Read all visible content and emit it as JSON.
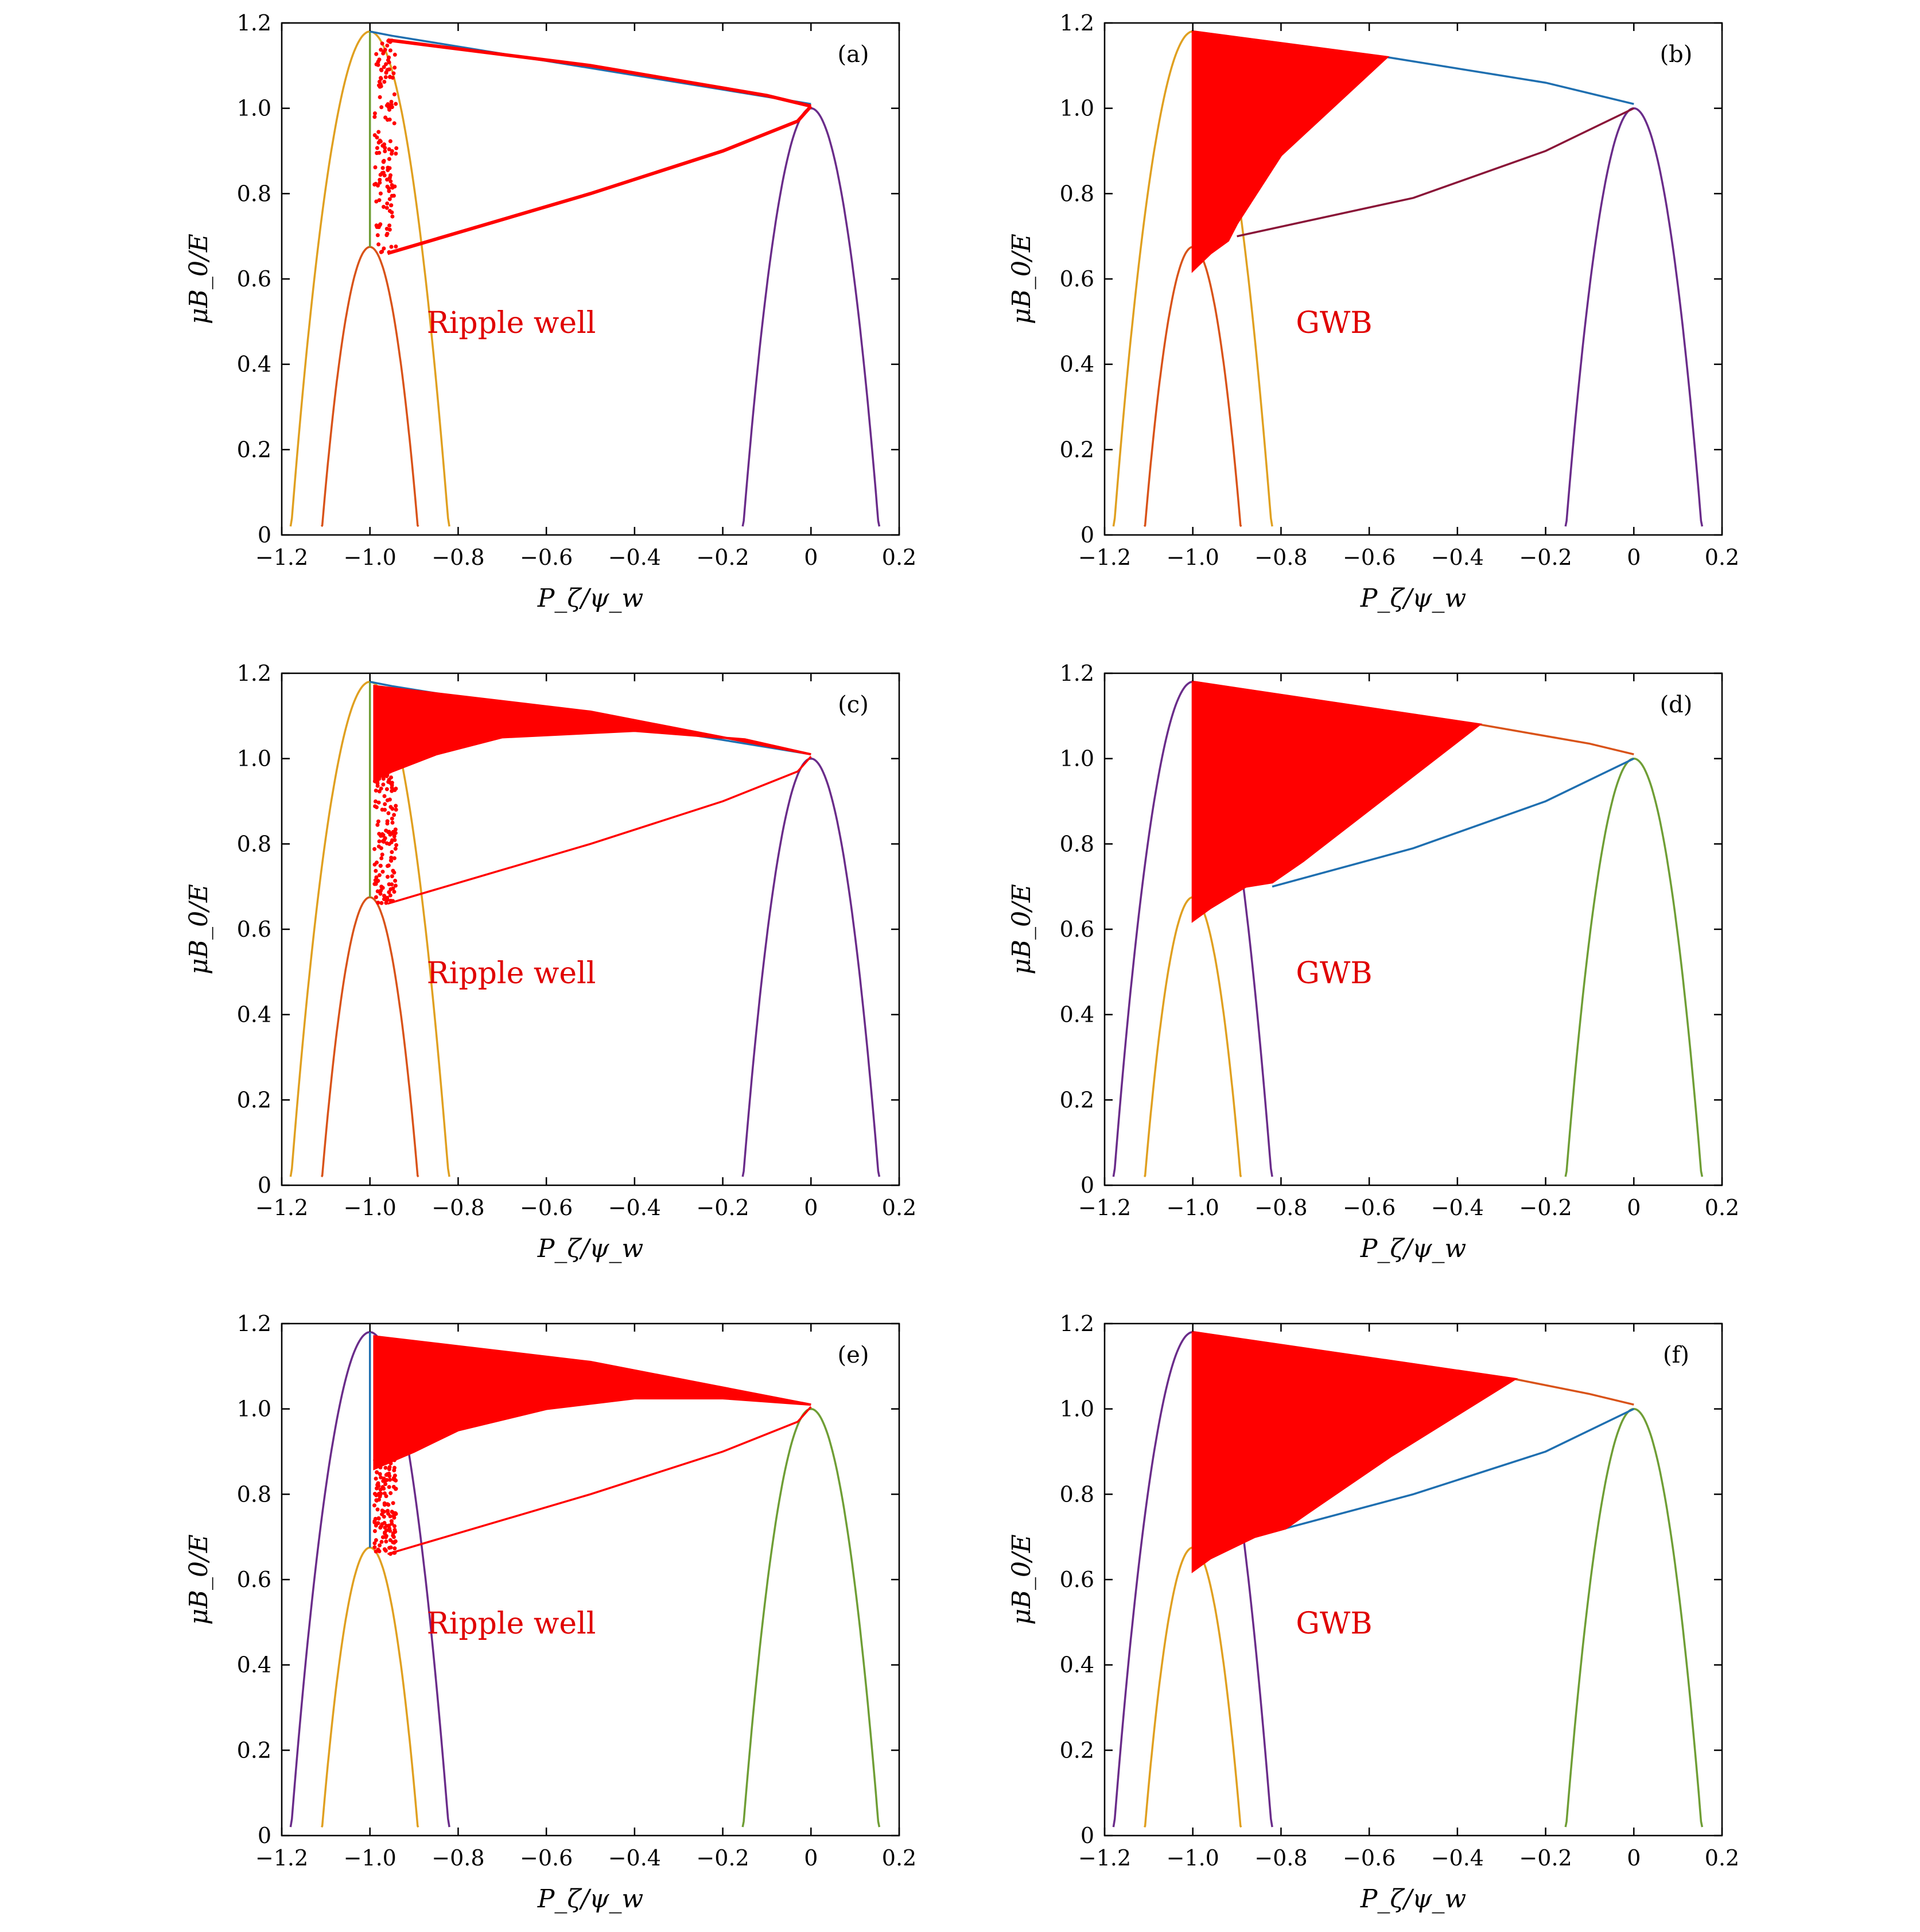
{
  "figure": {
    "colors": {
      "red": "#ff0000",
      "blue": "#1f6fb0",
      "orange": "#d95319",
      "gold": "#e0a020",
      "purple": "#6a2c8a",
      "green": "#6f9e35",
      "darkred": "#8a1538",
      "annotation": "#e00000"
    }
  },
  "chart_data": [
    {
      "id": "a",
      "type": "scatter",
      "panel_label": "(a)",
      "annotation": "Ripple well",
      "xlabel": "P_ζ/ψ_w",
      "ylabel": "μB_0/E",
      "xlim": [
        -1.2,
        0.2
      ],
      "ylim": [
        0,
        1.2
      ],
      "xticks": [
        -1.2,
        -1.0,
        -0.8,
        -0.6,
        -0.4,
        -0.2,
        0,
        0.2
      ],
      "xtick_labels": [
        "−1.2",
        "−1.0",
        "−0.8",
        "−0.6",
        "−0.4",
        "−0.2",
        "0",
        "0.2"
      ],
      "yticks": [
        0,
        0.2,
        0.4,
        0.6,
        0.8,
        1.0,
        1.2
      ],
      "ytick_labels": [
        "0",
        "0.2",
        "0.4",
        "0.6",
        "0.8",
        "1.0",
        "1.2"
      ],
      "series": [
        {
          "color": "gold",
          "shape": "parabola",
          "apex": [
            -1.0,
            1.18
          ],
          "roots": [
            -1.18,
            -0.82
          ]
        },
        {
          "color": "orange",
          "shape": "parabola",
          "apex": [
            -1.0,
            0.675
          ],
          "roots": [
            -1.11,
            -0.89
          ]
        },
        {
          "color": "purple",
          "shape": "parabola",
          "apex": [
            0.0,
            1.0
          ],
          "roots": [
            -0.155,
            0.155
          ]
        },
        {
          "color": "green",
          "shape": "line",
          "points": [
            [
              -1.0,
              0.675
            ],
            [
              -1.0,
              1.18
            ]
          ]
        },
        {
          "color": "blue",
          "shape": "line",
          "points": [
            [
              -1.0,
              1.18
            ],
            [
              -0.95,
              1.17
            ],
            [
              0.0,
              1.01
            ]
          ]
        },
        {
          "color": "red",
          "shape": "loop",
          "upper": [
            [
              -0.96,
              1.16
            ],
            [
              -0.5,
              1.1
            ],
            [
              -0.1,
              1.03
            ],
            [
              0.0,
              1.005
            ]
          ],
          "lower": [
            [
              -0.96,
              0.66
            ],
            [
              -0.5,
              0.8
            ],
            [
              -0.2,
              0.9
            ],
            [
              -0.03,
              0.97
            ],
            [
              0.0,
              1.005
            ]
          ]
        },
        {
          "color": "red",
          "shape": "scatter_band",
          "x_range": [
            -0.99,
            -0.94
          ],
          "y_range": [
            0.66,
            1.16
          ]
        }
      ]
    },
    {
      "id": "b",
      "type": "scatter",
      "panel_label": "(b)",
      "annotation": "GWB",
      "xlabel": "P_ζ/ψ_w",
      "ylabel": "μB_0/E",
      "xlim": [
        -1.2,
        0.2
      ],
      "ylim": [
        0,
        1.2
      ],
      "xticks": [
        -1.2,
        -1.0,
        -0.8,
        -0.6,
        -0.4,
        -0.2,
        0,
        0.2
      ],
      "xtick_labels": [
        "−1.2",
        "−1.0",
        "−0.8",
        "−0.6",
        "−0.4",
        "−0.2",
        "0",
        "0.2"
      ],
      "yticks": [
        0,
        0.2,
        0.4,
        0.6,
        0.8,
        1.0,
        1.2
      ],
      "ytick_labels": [
        "0",
        "0.2",
        "0.4",
        "0.6",
        "0.8",
        "1.0",
        "1.2"
      ],
      "series": [
        {
          "color": "gold",
          "shape": "parabola",
          "apex": [
            -1.0,
            1.18
          ],
          "roots": [
            -1.18,
            -0.82
          ]
        },
        {
          "color": "orange",
          "shape": "parabola",
          "apex": [
            -1.0,
            0.675
          ],
          "roots": [
            -1.11,
            -0.89
          ]
        },
        {
          "color": "purple",
          "shape": "parabola",
          "apex": [
            0.0,
            1.0
          ],
          "roots": [
            -0.155,
            0.155
          ]
        },
        {
          "color": "blue",
          "shape": "line",
          "points": [
            [
              -1.0,
              1.18
            ],
            [
              -0.56,
              1.12
            ],
            [
              -0.2,
              1.06
            ],
            [
              0.0,
              1.01
            ]
          ]
        },
        {
          "color": "darkred",
          "shape": "line",
          "points": [
            [
              -0.9,
              0.7
            ],
            [
              -0.5,
              0.79
            ],
            [
              -0.2,
              0.9
            ],
            [
              0.0,
              1.0
            ]
          ]
        },
        {
          "color": "red",
          "shape": "filled",
          "polygon": [
            [
              -1.0,
              1.18
            ],
            [
              -0.56,
              1.12
            ],
            [
              -0.8,
              0.89
            ],
            [
              -0.9,
              0.73
            ],
            [
              -0.92,
              0.69
            ],
            [
              -0.96,
              0.66
            ],
            [
              -1.0,
              0.62
            ]
          ]
        }
      ]
    },
    {
      "id": "c",
      "type": "scatter",
      "panel_label": "(c)",
      "annotation": "Ripple well",
      "xlabel": "P_ζ/ψ_w",
      "ylabel": "μB_0/E",
      "xlim": [
        -1.2,
        0.2
      ],
      "ylim": [
        0,
        1.2
      ],
      "xticks": [
        -1.2,
        -1.0,
        -0.8,
        -0.6,
        -0.4,
        -0.2,
        0,
        0.2
      ],
      "xtick_labels": [
        "−1.2",
        "−1.0",
        "−0.8",
        "−0.6",
        "−0.4",
        "−0.2",
        "0",
        "0.2"
      ],
      "yticks": [
        0,
        0.2,
        0.4,
        0.6,
        0.8,
        1.0,
        1.2
      ],
      "ytick_labels": [
        "0",
        "0.2",
        "0.4",
        "0.6",
        "0.8",
        "1.0",
        "1.2"
      ],
      "series": [
        {
          "color": "gold",
          "shape": "parabola",
          "apex": [
            -1.0,
            1.18
          ],
          "roots": [
            -1.18,
            -0.82
          ]
        },
        {
          "color": "orange",
          "shape": "parabola",
          "apex": [
            -1.0,
            0.675
          ],
          "roots": [
            -1.11,
            -0.89
          ]
        },
        {
          "color": "purple",
          "shape": "parabola",
          "apex": [
            0.0,
            1.0
          ],
          "roots": [
            -0.155,
            0.155
          ]
        },
        {
          "color": "green",
          "shape": "line",
          "points": [
            [
              -1.0,
              0.675
            ],
            [
              -1.0,
              1.18
            ]
          ]
        },
        {
          "color": "blue",
          "shape": "line",
          "points": [
            [
              -1.0,
              1.18
            ],
            [
              -0.95,
              1.17
            ],
            [
              0.0,
              1.01
            ]
          ]
        },
        {
          "color": "red",
          "shape": "filled",
          "polygon": [
            [
              -0.99,
              1.17
            ],
            [
              -0.5,
              1.11
            ],
            [
              -0.2,
              1.05
            ],
            [
              0.0,
              1.01
            ],
            [
              -0.15,
              1.045
            ],
            [
              -0.4,
              1.065
            ],
            [
              -0.7,
              1.05
            ],
            [
              -0.85,
              1.01
            ],
            [
              -0.95,
              0.97
            ],
            [
              -0.99,
              0.95
            ]
          ]
        },
        {
          "color": "red",
          "shape": "line",
          "points": [
            [
              -0.96,
              0.66
            ],
            [
              -0.5,
              0.8
            ],
            [
              -0.2,
              0.9
            ],
            [
              -0.03,
              0.97
            ],
            [
              0.0,
              1.005
            ]
          ]
        },
        {
          "color": "red",
          "shape": "scatter_band",
          "x_range": [
            -0.99,
            -0.94
          ],
          "y_range": [
            0.66,
            1.0
          ]
        }
      ]
    },
    {
      "id": "d",
      "type": "scatter",
      "panel_label": "(d)",
      "annotation": "GWB",
      "xlabel": "P_ζ/ψ_w",
      "ylabel": "μB_0/E",
      "xlim": [
        -1.2,
        0.2
      ],
      "ylim": [
        0,
        1.2
      ],
      "xticks": [
        -1.2,
        -1.0,
        -0.8,
        -0.6,
        -0.4,
        -0.2,
        0,
        0.2
      ],
      "xtick_labels": [
        "−1.2",
        "−1.0",
        "−0.8",
        "−0.6",
        "−0.4",
        "−0.2",
        "0",
        "0.2"
      ],
      "yticks": [
        0,
        0.2,
        0.4,
        0.6,
        0.8,
        1.0,
        1.2
      ],
      "ytick_labels": [
        "0",
        "0.2",
        "0.4",
        "0.6",
        "0.8",
        "1.0",
        "1.2"
      ],
      "series": [
        {
          "color": "purple",
          "shape": "parabola",
          "apex": [
            -1.0,
            1.18
          ],
          "roots": [
            -1.18,
            -0.82
          ]
        },
        {
          "color": "gold",
          "shape": "parabola",
          "apex": [
            -1.0,
            0.675
          ],
          "roots": [
            -1.11,
            -0.89
          ]
        },
        {
          "color": "green",
          "shape": "parabola",
          "apex": [
            0.0,
            1.0
          ],
          "roots": [
            -0.155,
            0.155
          ]
        },
        {
          "color": "orange",
          "shape": "line",
          "points": [
            [
              -1.0,
              1.18
            ],
            [
              -0.35,
              1.08
            ],
            [
              -0.1,
              1.035
            ],
            [
              0.0,
              1.01
            ]
          ]
        },
        {
          "color": "blue",
          "shape": "line",
          "points": [
            [
              -0.82,
              0.7
            ],
            [
              -0.5,
              0.79
            ],
            [
              -0.2,
              0.9
            ],
            [
              0.0,
              1.0
            ]
          ]
        },
        {
          "color": "red",
          "shape": "filled",
          "polygon": [
            [
              -1.0,
              1.18
            ],
            [
              -0.35,
              1.08
            ],
            [
              -0.6,
              0.88
            ],
            [
              -0.75,
              0.76
            ],
            [
              -0.82,
              0.71
            ],
            [
              -0.88,
              0.7
            ],
            [
              -0.96,
              0.65
            ],
            [
              -1.0,
              0.62
            ]
          ]
        }
      ]
    },
    {
      "id": "e",
      "type": "scatter",
      "panel_label": "(e)",
      "annotation": "Ripple well",
      "xlabel": "P_ζ/ψ_w",
      "ylabel": "μB_0/E",
      "xlim": [
        -1.2,
        0.2
      ],
      "ylim": [
        0,
        1.2
      ],
      "xticks": [
        -1.2,
        -1.0,
        -0.8,
        -0.6,
        -0.4,
        -0.2,
        0,
        0.2
      ],
      "xtick_labels": [
        "−1.2",
        "−1.0",
        "−0.8",
        "−0.6",
        "−0.4",
        "−0.2",
        "0",
        "0.2"
      ],
      "yticks": [
        0,
        0.2,
        0.4,
        0.6,
        0.8,
        1.0,
        1.2
      ],
      "ytick_labels": [
        "0",
        "0.2",
        "0.4",
        "0.6",
        "0.8",
        "1.0",
        "1.2"
      ],
      "series": [
        {
          "color": "purple",
          "shape": "parabola",
          "apex": [
            -1.0,
            1.18
          ],
          "roots": [
            -1.18,
            -0.82
          ]
        },
        {
          "color": "gold",
          "shape": "parabola",
          "apex": [
            -1.0,
            0.675
          ],
          "roots": [
            -1.11,
            -0.89
          ]
        },
        {
          "color": "green",
          "shape": "parabola",
          "apex": [
            0.0,
            1.0
          ],
          "roots": [
            -0.155,
            0.155
          ]
        },
        {
          "color": "blue",
          "shape": "line",
          "points": [
            [
              -1.0,
              0.675
            ],
            [
              -1.0,
              1.18
            ]
          ]
        },
        {
          "color": "red",
          "shape": "filled",
          "polygon": [
            [
              -0.99,
              1.17
            ],
            [
              -0.5,
              1.11
            ],
            [
              -0.2,
              1.05
            ],
            [
              0.0,
              1.01
            ],
            [
              -0.2,
              1.025
            ],
            [
              -0.4,
              1.025
            ],
            [
              -0.6,
              1.0
            ],
            [
              -0.8,
              0.95
            ],
            [
              -0.9,
              0.9
            ],
            [
              -0.99,
              0.86
            ]
          ]
        },
        {
          "color": "red",
          "shape": "line",
          "points": [
            [
              -0.96,
              0.66
            ],
            [
              -0.5,
              0.8
            ],
            [
              -0.2,
              0.9
            ],
            [
              -0.03,
              0.97
            ],
            [
              0.0,
              1.005
            ]
          ]
        },
        {
          "color": "red",
          "shape": "scatter_band",
          "x_range": [
            -0.99,
            -0.94
          ],
          "y_range": [
            0.66,
            0.9
          ]
        }
      ]
    },
    {
      "id": "f",
      "type": "scatter",
      "panel_label": "(f)",
      "annotation": "GWB",
      "xlabel": "P_ζ/ψ_w",
      "ylabel": "μB_0/E",
      "xlim": [
        -1.2,
        0.2
      ],
      "ylim": [
        0,
        1.2
      ],
      "xticks": [
        -1.2,
        -1.0,
        -0.8,
        -0.6,
        -0.4,
        -0.2,
        0,
        0.2
      ],
      "xtick_labels": [
        "−1.2",
        "−1.0",
        "−0.8",
        "−0.6",
        "−0.4",
        "−0.2",
        "0",
        "0.2"
      ],
      "yticks": [
        0,
        0.2,
        0.4,
        0.6,
        0.8,
        1.0,
        1.2
      ],
      "ytick_labels": [
        "0",
        "0.2",
        "0.4",
        "0.6",
        "0.8",
        "1.0",
        "1.2"
      ],
      "series": [
        {
          "color": "purple",
          "shape": "parabola",
          "apex": [
            -1.0,
            1.18
          ],
          "roots": [
            -1.18,
            -0.82
          ]
        },
        {
          "color": "gold",
          "shape": "parabola",
          "apex": [
            -1.0,
            0.675
          ],
          "roots": [
            -1.11,
            -0.89
          ]
        },
        {
          "color": "green",
          "shape": "parabola",
          "apex": [
            0.0,
            1.0
          ],
          "roots": [
            -0.155,
            0.155
          ]
        },
        {
          "color": "orange",
          "shape": "line",
          "points": [
            [
              -1.0,
              1.18
            ],
            [
              -0.27,
              1.07
            ],
            [
              -0.1,
              1.035
            ],
            [
              0.0,
              1.01
            ]
          ]
        },
        {
          "color": "blue",
          "shape": "line",
          "points": [
            [
              -0.79,
              0.72
            ],
            [
              -0.5,
              0.8
            ],
            [
              -0.2,
              0.9
            ],
            [
              0.0,
              1.0
            ]
          ]
        },
        {
          "color": "red",
          "shape": "filled",
          "polygon": [
            [
              -1.0,
              1.18
            ],
            [
              -0.27,
              1.07
            ],
            [
              -0.55,
              0.89
            ],
            [
              -0.72,
              0.77
            ],
            [
              -0.79,
              0.72
            ],
            [
              -0.86,
              0.7
            ],
            [
              -0.96,
              0.65
            ],
            [
              -1.0,
              0.62
            ]
          ]
        }
      ]
    }
  ]
}
